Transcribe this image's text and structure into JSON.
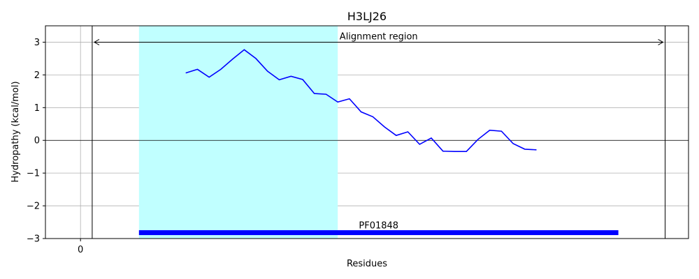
{
  "chart_data": {
    "type": "line",
    "title": "H3LJ26",
    "xlabel": "Residues",
    "ylabel": "Hydropathy (kcal/mol)",
    "xlim": [
      -3,
      52
    ],
    "ylim": [
      -3,
      3.5
    ],
    "x_ticks": [
      0
    ],
    "y_ticks": [
      -3,
      -2,
      -1,
      0,
      1,
      2,
      3
    ],
    "y_tick_labels": [
      "−3",
      "−2",
      "−1",
      "0",
      "1",
      "2",
      "3"
    ],
    "grid": true,
    "series": [
      {
        "color": "#0000ff",
        "x": [
          9,
          10,
          11,
          12,
          13,
          14,
          15,
          16,
          17,
          18,
          19,
          20,
          21,
          22,
          23,
          24,
          25,
          26,
          27,
          28,
          29,
          30,
          31,
          32,
          33,
          34,
          35,
          36,
          37,
          38,
          39
        ],
        "y": [
          2.06,
          2.17,
          1.93,
          2.17,
          2.48,
          2.77,
          2.5,
          2.11,
          1.85,
          1.96,
          1.86,
          1.43,
          1.41,
          1.17,
          1.27,
          0.87,
          0.72,
          0.41,
          0.15,
          0.26,
          -0.12,
          0.07,
          -0.33,
          -0.34,
          -0.34,
          0.03,
          0.31,
          0.28,
          -0.1,
          -0.27,
          -0.29
        ]
      }
    ],
    "highlight_region": {
      "x_start": 5,
      "x_end": 22,
      "color": "#c0ffff"
    },
    "alignment_region": {
      "x_start": 1,
      "x_end": 50,
      "y": 3.0,
      "label": "Alignment region"
    },
    "domain_bar": {
      "x_start": 5,
      "x_end": 46,
      "y": -2.82,
      "label": "PF01848",
      "color": "#0000ff"
    }
  }
}
